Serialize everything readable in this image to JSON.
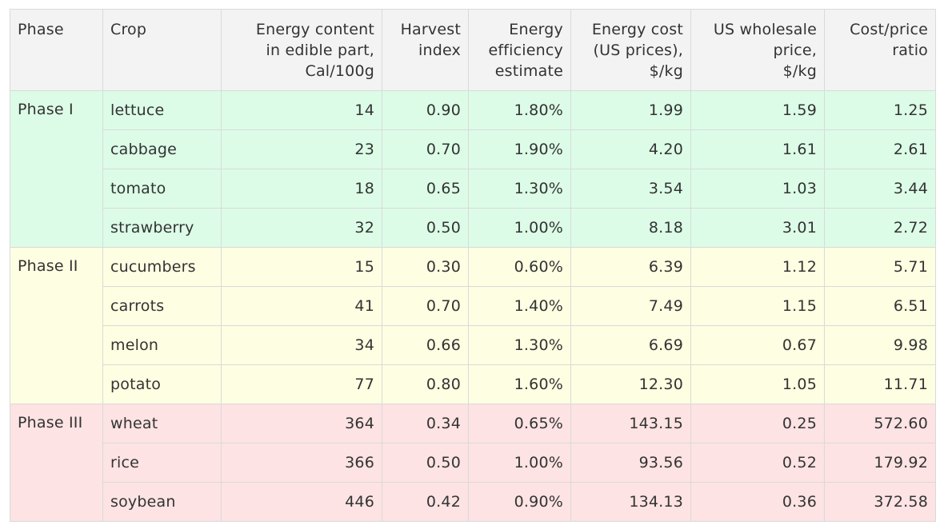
{
  "colors": {
    "header_bg": "#f3f3f3",
    "border": "#dadada",
    "text": "#333333",
    "phase_1_bg": "#dcfce7",
    "phase_2_bg": "#fefee2",
    "phase_3_bg": "#fde3e3"
  },
  "table": {
    "headers": [
      [
        "Phase"
      ],
      [
        "Crop"
      ],
      [
        "Energy content",
        "in edible part,",
        "Cal/100g"
      ],
      [
        "Harvest",
        "index"
      ],
      [
        "Energy",
        "efficiency",
        "estimate"
      ],
      [
        "Energy cost",
        "(US prices),",
        "$/kg"
      ],
      [
        "US wholesale",
        "price,",
        "$/kg"
      ],
      [
        "Cost/price",
        "ratio"
      ]
    ],
    "phases": [
      {
        "label": "Phase I",
        "color_key": "phase_1_bg",
        "rows": [
          [
            "lettuce",
            "14",
            "0.90",
            "1.80%",
            "1.99",
            "1.59",
            "1.25"
          ],
          [
            "cabbage",
            "23",
            "0.70",
            "1.90%",
            "4.20",
            "1.61",
            "2.61"
          ],
          [
            "tomato",
            "18",
            "0.65",
            "1.30%",
            "3.54",
            "1.03",
            "3.44"
          ],
          [
            "strawberry",
            "32",
            "0.50",
            "1.00%",
            "8.18",
            "3.01",
            "2.72"
          ]
        ]
      },
      {
        "label": "Phase II",
        "color_key": "phase_2_bg",
        "rows": [
          [
            "cucumbers",
            "15",
            "0.30",
            "0.60%",
            "6.39",
            "1.12",
            "5.71"
          ],
          [
            "carrots",
            "41",
            "0.70",
            "1.40%",
            "7.49",
            "1.15",
            "6.51"
          ],
          [
            "melon",
            "34",
            "0.66",
            "1.30%",
            "6.69",
            "0.67",
            "9.98"
          ],
          [
            "potato",
            "77",
            "0.80",
            "1.60%",
            "12.30",
            "1.05",
            "11.71"
          ]
        ]
      },
      {
        "label": "Phase III",
        "color_key": "phase_3_bg",
        "rows": [
          [
            "wheat",
            "364",
            "0.34",
            "0.65%",
            "143.15",
            "0.25",
            "572.60"
          ],
          [
            "rice",
            "366",
            "0.50",
            "1.00%",
            "93.56",
            "0.52",
            "179.92"
          ],
          [
            "soybean",
            "446",
            "0.42",
            "0.90%",
            "134.13",
            "0.36",
            "372.58"
          ]
        ]
      }
    ]
  }
}
